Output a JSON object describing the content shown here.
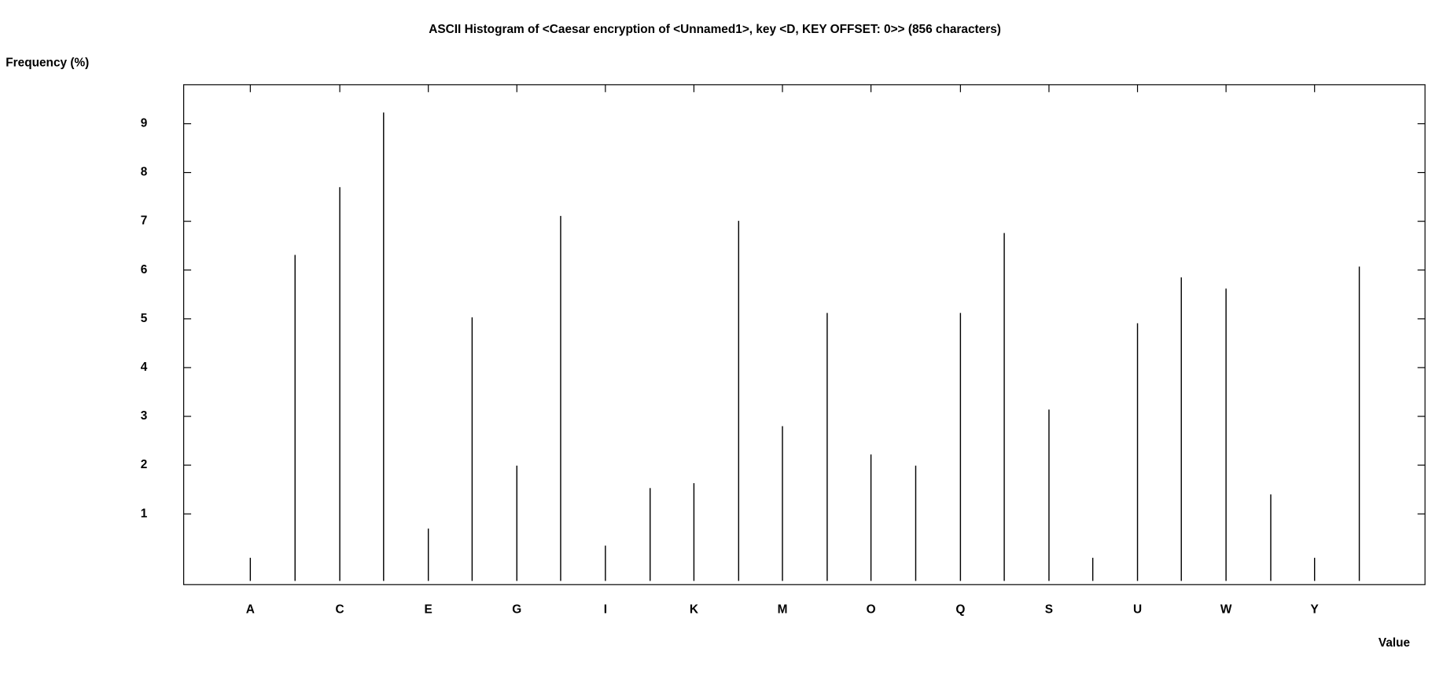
{
  "chart_data": {
    "type": "bar",
    "title": "ASCII Histogram of <Caesar encryption of <Unnamed1>, key <D, KEY OFFSET: 0>> (856 characters)",
    "y_label": "Frequency (%)",
    "x_label": "Value",
    "categories": [
      "A",
      null,
      "C",
      null,
      "E",
      null,
      "G",
      null,
      "I",
      null,
      "K",
      null,
      "M",
      null,
      "O",
      null,
      "Q",
      null,
      "S",
      null,
      "U",
      null,
      "W",
      null,
      "Y",
      null
    ],
    "values": [
      0.1,
      6.31,
      7.7,
      9.23,
      0.7,
      5.03,
      1.99,
      7.11,
      0.35,
      1.53,
      1.63,
      7.01,
      2.8,
      5.12,
      2.22,
      1.99,
      5.12,
      6.76,
      3.14,
      0.1,
      4.91,
      5.85,
      5.62,
      1.4,
      0.1,
      6.07
    ],
    "color": "#000000",
    "ylim": [
      -0.45,
      9.8
    ],
    "yticks": [
      1,
      2,
      3,
      4,
      5,
      6,
      7,
      8,
      9
    ]
  }
}
